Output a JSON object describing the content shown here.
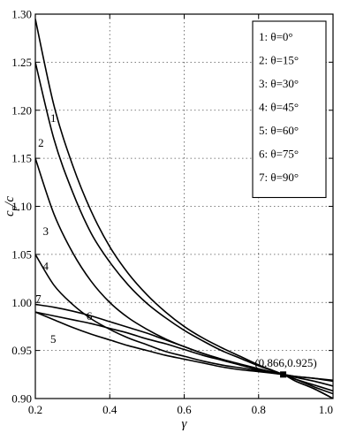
{
  "chart_data": {
    "type": "line",
    "xlabel": "γ",
    "ylabel_main": "c",
    "ylabel_sub": "p",
    "ylabel_tail": "/c",
    "xlim": [
      0.2,
      1.0
    ],
    "ylim": [
      0.9,
      1.3
    ],
    "xticks": [
      0.2,
      0.4,
      0.6,
      0.8,
      1.0
    ],
    "xtick_labels": [
      "0.2",
      "0.4",
      "0.6",
      "0.8",
      "1.0"
    ],
    "yticks": [
      0.9,
      0.95,
      1.0,
      1.05,
      1.1,
      1.15,
      1.2,
      1.25,
      1.3
    ],
    "ytick_labels": [
      "0.90",
      "0.95",
      "1.00",
      "1.05",
      "1.10",
      "1.15",
      "1.20",
      "1.25",
      "1.30"
    ],
    "grid": true,
    "legend_position": "top-right",
    "series": [
      {
        "id": "1",
        "name": "1: θ=0°",
        "x": [
          0.2,
          0.25,
          0.3,
          0.35,
          0.4,
          0.45,
          0.5,
          0.55,
          0.6,
          0.65,
          0.7,
          0.75,
          0.8,
          0.866,
          0.9,
          0.95,
          1.0
        ],
        "y": [
          1.295,
          1.205,
          1.143,
          1.095,
          1.058,
          1.03,
          1.008,
          0.99,
          0.975,
          0.963,
          0.953,
          0.944,
          0.935,
          0.925,
          0.918,
          0.91,
          0.9
        ]
      },
      {
        "id": "2",
        "name": "2: θ=15°",
        "x": [
          0.2,
          0.25,
          0.3,
          0.35,
          0.4,
          0.45,
          0.5,
          0.55,
          0.6,
          0.65,
          0.7,
          0.75,
          0.8,
          0.866,
          0.9,
          0.95,
          1.0
        ],
        "y": [
          1.25,
          1.17,
          1.115,
          1.072,
          1.042,
          1.018,
          0.999,
          0.984,
          0.971,
          0.96,
          0.95,
          0.942,
          0.934,
          0.925,
          0.92,
          0.912,
          0.905
        ]
      },
      {
        "id": "3",
        "name": "3: θ=30°",
        "x": [
          0.2,
          0.25,
          0.3,
          0.35,
          0.4,
          0.45,
          0.5,
          0.55,
          0.6,
          0.65,
          0.7,
          0.75,
          0.8,
          0.866,
          0.9,
          0.95,
          1.0
        ],
        "y": [
          1.15,
          1.092,
          1.052,
          1.022,
          1.0,
          0.984,
          0.972,
          0.962,
          0.954,
          0.947,
          0.941,
          0.936,
          0.931,
          0.925,
          0.922,
          0.918,
          0.913
        ]
      },
      {
        "id": "4",
        "name": "4: θ=45°",
        "x": [
          0.2,
          0.25,
          0.3,
          0.35,
          0.4,
          0.45,
          0.5,
          0.55,
          0.6,
          0.65,
          0.7,
          0.75,
          0.8,
          0.866,
          0.9,
          0.95,
          1.0
        ],
        "y": [
          1.05,
          1.018,
          0.998,
          0.983,
          0.972,
          0.963,
          0.956,
          0.949,
          0.944,
          0.939,
          0.935,
          0.932,
          0.929,
          0.925,
          0.923,
          0.921,
          0.918
        ]
      },
      {
        "id": "5",
        "name": "5: θ=60°",
        "x": [
          0.2,
          0.25,
          0.3,
          0.35,
          0.4,
          0.45,
          0.5,
          0.55,
          0.6,
          0.65,
          0.7,
          0.75,
          0.8,
          0.866,
          0.9,
          0.95,
          1.0
        ],
        "y": [
          0.99,
          0.982,
          0.974,
          0.967,
          0.961,
          0.955,
          0.95,
          0.945,
          0.941,
          0.937,
          0.933,
          0.93,
          0.928,
          0.925,
          0.923,
          0.921,
          0.919
        ]
      },
      {
        "id": "6",
        "name": "6: θ=75°",
        "x": [
          0.2,
          0.25,
          0.3,
          0.35,
          0.4,
          0.45,
          0.5,
          0.55,
          0.6,
          0.65,
          0.7,
          0.75,
          0.8,
          0.866,
          0.9,
          0.95,
          1.0
        ],
        "y": [
          0.99,
          0.986,
          0.982,
          0.978,
          0.973,
          0.968,
          0.962,
          0.957,
          0.951,
          0.945,
          0.94,
          0.935,
          0.93,
          0.925,
          0.92,
          0.914,
          0.908
        ]
      },
      {
        "id": "7",
        "name": "7: θ=90°",
        "x": [
          0.2,
          0.25,
          0.3,
          0.35,
          0.4,
          0.45,
          0.5,
          0.55,
          0.6,
          0.65,
          0.7,
          0.75,
          0.8,
          0.866,
          0.9,
          0.95,
          1.0
        ],
        "y": [
          0.998,
          0.995,
          0.991,
          0.986,
          0.98,
          0.974,
          0.968,
          0.961,
          0.954,
          0.947,
          0.941,
          0.935,
          0.93,
          0.925,
          0.918,
          0.91,
          0.9
        ]
      }
    ],
    "curve_labels": [
      {
        "id": "1",
        "text": "1",
        "x": 0.248,
        "y": 1.188
      },
      {
        "id": "2",
        "text": "2",
        "x": 0.215,
        "y": 1.162
      },
      {
        "id": "3",
        "text": "3",
        "x": 0.228,
        "y": 1.07
      },
      {
        "id": "4",
        "text": "4",
        "x": 0.228,
        "y": 1.034
      },
      {
        "id": "5",
        "text": "5",
        "x": 0.248,
        "y": 0.958
      },
      {
        "id": "6",
        "text": "6",
        "x": 0.345,
        "y": 0.982
      },
      {
        "id": "7",
        "text": "7",
        "x": 0.208,
        "y": 1.0
      }
    ],
    "annotation": {
      "text": "(0.866,0.925)",
      "point_x": 0.866,
      "point_y": 0.925
    }
  }
}
